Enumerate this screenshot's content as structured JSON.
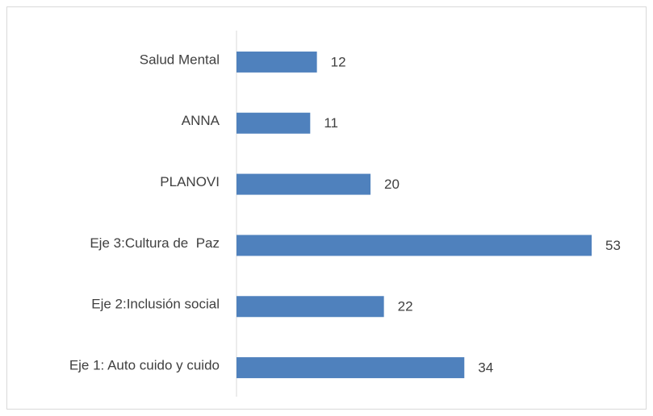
{
  "chart_data": {
    "type": "bar",
    "orientation": "horizontal",
    "categories": [
      "Salud Mental",
      "ANNA",
      "PLANOVI",
      "Eje 3:Cultura de  Paz",
      "Eje 2:Inclusión social",
      "Eje 1: Auto cuido y cuido"
    ],
    "values": [
      12,
      11,
      20,
      53,
      22,
      34
    ],
    "color": "#4f81bd"
  }
}
